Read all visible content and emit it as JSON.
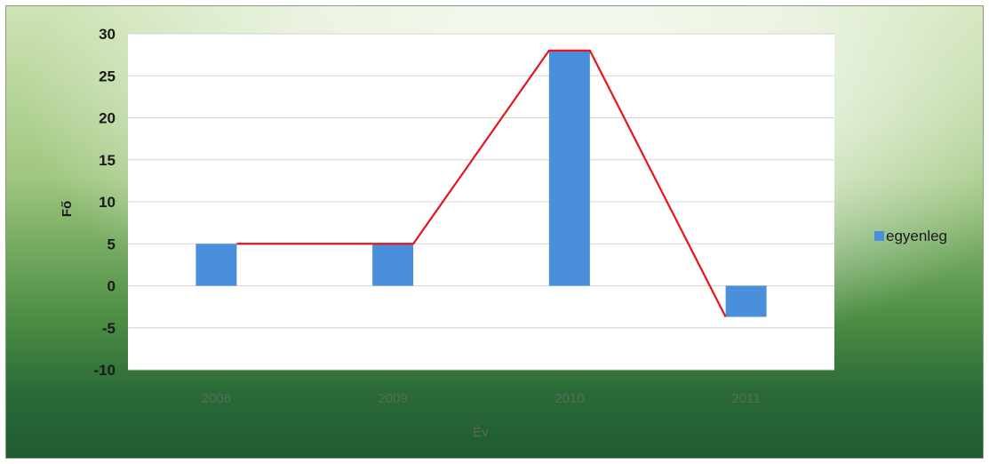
{
  "chart_data": {
    "type": "bar",
    "categories": [
      "2008",
      "2009",
      "2010",
      "2011"
    ],
    "series": [
      {
        "name": "egyenleg",
        "values": [
          5,
          5,
          28,
          -3.7
        ]
      }
    ],
    "overlay_line": {
      "values": [
        5,
        5,
        28,
        -3.7
      ]
    },
    "title": "",
    "xlabel": "Év",
    "ylabel": "Fő",
    "ylim": [
      -10,
      30
    ],
    "yticks": [
      30,
      25,
      20,
      15,
      10,
      5,
      0,
      -5,
      -10
    ],
    "grid": true,
    "legend_position": "right",
    "colors": {
      "bar": "#4a8fdc",
      "line": "#e8141a",
      "plot_bg": "#ffffff",
      "grid": "#d4d4d4"
    }
  }
}
